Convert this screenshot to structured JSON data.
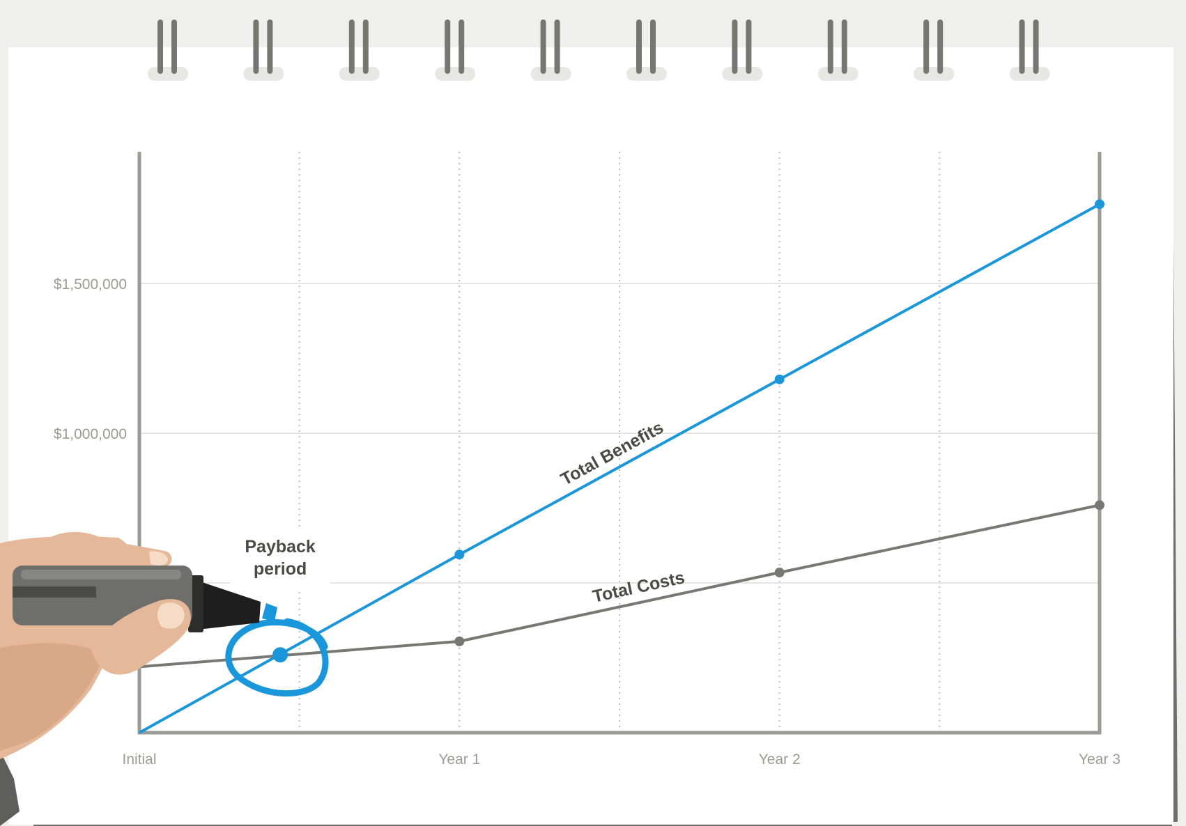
{
  "chart_data": {
    "type": "line",
    "categories": [
      "Initial",
      "Year 1",
      "Year 2",
      "Year 3"
    ],
    "x": [
      0,
      1,
      2,
      3
    ],
    "series": [
      {
        "name": "Total Benefits",
        "color": "#1a96da",
        "values": [
          0,
          595000,
          1180000,
          1765000
        ]
      },
      {
        "name": "Total Costs",
        "color": "#787873",
        "values": [
          220000,
          305000,
          535000,
          760000
        ]
      }
    ],
    "yticks": [
      {
        "value": 500000,
        "label": ""
      },
      {
        "value": 1000000,
        "label": "$1,000,000"
      },
      {
        "value": 1500000,
        "label": "$1,500,000"
      }
    ],
    "ylim": [
      0,
      1940000
    ],
    "xlim": [
      0,
      3
    ],
    "x_gridlines": [
      0.5,
      1,
      1.5,
      2,
      2.5
    ],
    "annotation": {
      "line1": "Payback",
      "line2": "period",
      "x": 0.44,
      "y": 260000,
      "color": "#1a96da"
    },
    "grid": true,
    "legend": "none"
  }
}
